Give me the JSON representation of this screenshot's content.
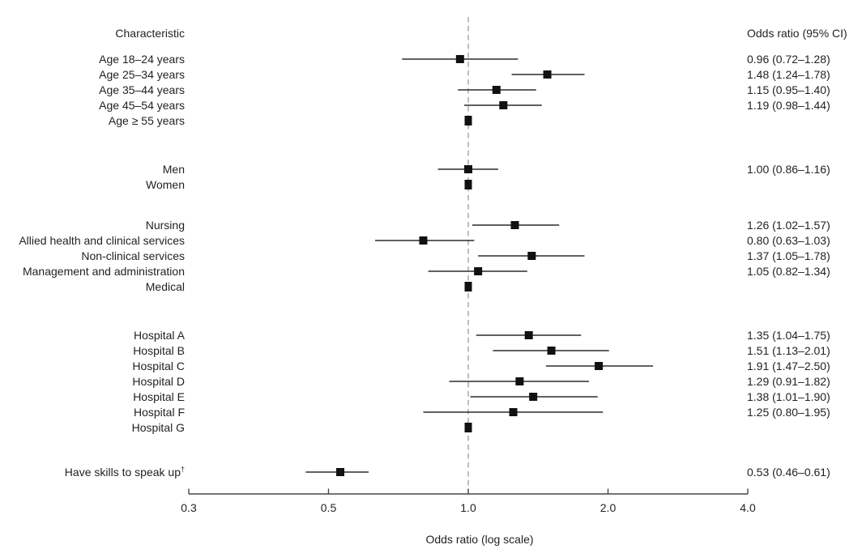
{
  "figure": {
    "background_color": "#ffffff",
    "text_color": "#231f20"
  },
  "chart_data": {
    "type": "scatter",
    "subtype": "forest-plot",
    "title": "",
    "left_column_header": "Characteristic",
    "right_column_header": "Odds ratio (95% CI)",
    "xlabel": "Odds ratio (log scale)",
    "x_scale": "log",
    "x_ticks": [
      0.3,
      0.5,
      1.0,
      2.0,
      4.0
    ],
    "x_tick_labels": [
      "0.3",
      "0.5",
      "1.0",
      "2.0",
      "4.0"
    ],
    "x_range": [
      0.3,
      4.0
    ],
    "reference_line_x": 1.0,
    "grid": false,
    "legend": "none",
    "groups": [
      {
        "name": "age",
        "rows": [
          {
            "label": "Age 18–24 years",
            "or": 0.96,
            "ci_low": 0.72,
            "ci_high": 1.28,
            "or_text": "0.96 (0.72–1.28)"
          },
          {
            "label": "Age 25–34 years",
            "or": 1.48,
            "ci_low": 1.24,
            "ci_high": 1.78,
            "or_text": "1.48 (1.24–1.78)"
          },
          {
            "label": "Age 35–44 years",
            "or": 1.15,
            "ci_low": 0.95,
            "ci_high": 1.4,
            "or_text": "1.15 (0.95–1.40)"
          },
          {
            "label": "Age 45–54 years",
            "or": 1.19,
            "ci_low": 0.98,
            "ci_high": 1.44,
            "or_text": "1.19 (0.98–1.44)"
          },
          {
            "label": "Age ≥ 55 years",
            "or": 1.0,
            "reference": true
          }
        ]
      },
      {
        "name": "sex",
        "rows": [
          {
            "label": "Men",
            "or": 1.0,
            "ci_low": 0.86,
            "ci_high": 1.16,
            "or_text": "1.00 (0.86–1.16)"
          },
          {
            "label": "Women",
            "or": 1.0,
            "reference": true
          }
        ]
      },
      {
        "name": "occupation",
        "rows": [
          {
            "label": "Nursing",
            "or": 1.26,
            "ci_low": 1.02,
            "ci_high": 1.57,
            "or_text": "1.26 (1.02–1.57)"
          },
          {
            "label": "Allied health and clinical services",
            "or": 0.8,
            "ci_low": 0.63,
            "ci_high": 1.03,
            "or_text": "0.80 (0.63–1.03)"
          },
          {
            "label": "Non-clinical services",
            "or": 1.37,
            "ci_low": 1.05,
            "ci_high": 1.78,
            "or_text": "1.37 (1.05–1.78)"
          },
          {
            "label": "Management and administration",
            "or": 1.05,
            "ci_low": 0.82,
            "ci_high": 1.34,
            "or_text": "1.05 (0.82–1.34)"
          },
          {
            "label": "Medical",
            "or": 1.0,
            "reference": true
          }
        ]
      },
      {
        "name": "hospital",
        "rows": [
          {
            "label": "Hospital A",
            "or": 1.35,
            "ci_low": 1.04,
            "ci_high": 1.75,
            "or_text": "1.35 (1.04–1.75)"
          },
          {
            "label": "Hospital B",
            "or": 1.51,
            "ci_low": 1.13,
            "ci_high": 2.01,
            "or_text": "1.51 (1.13–2.01)"
          },
          {
            "label": "Hospital C",
            "or": 1.91,
            "ci_low": 1.47,
            "ci_high": 2.5,
            "or_text": "1.91 (1.47–2.50)"
          },
          {
            "label": "Hospital D",
            "or": 1.29,
            "ci_low": 0.91,
            "ci_high": 1.82,
            "or_text": "1.29 (0.91–1.82)"
          },
          {
            "label": "Hospital E",
            "or": 1.38,
            "ci_low": 1.01,
            "ci_high": 1.9,
            "or_text": "1.38 (1.01–1.90)"
          },
          {
            "label": "Hospital F",
            "or": 1.25,
            "ci_low": 0.8,
            "ci_high": 1.95,
            "or_text": "1.25 (0.80–1.95)"
          },
          {
            "label": "Hospital G",
            "or": 1.0,
            "reference": true
          }
        ]
      },
      {
        "name": "skills",
        "rows": [
          {
            "label": "Have skills to speak up",
            "label_superscript": "†",
            "or": 0.53,
            "ci_low": 0.46,
            "ci_high": 0.61,
            "or_text": "0.53 (0.46–0.61)"
          }
        ]
      }
    ],
    "colors": {
      "marker": "#111111",
      "ci_line": "#2b2b2b",
      "reference_line": "#9a9a9a",
      "axis_line": "#474747",
      "text": "#231f20"
    }
  }
}
